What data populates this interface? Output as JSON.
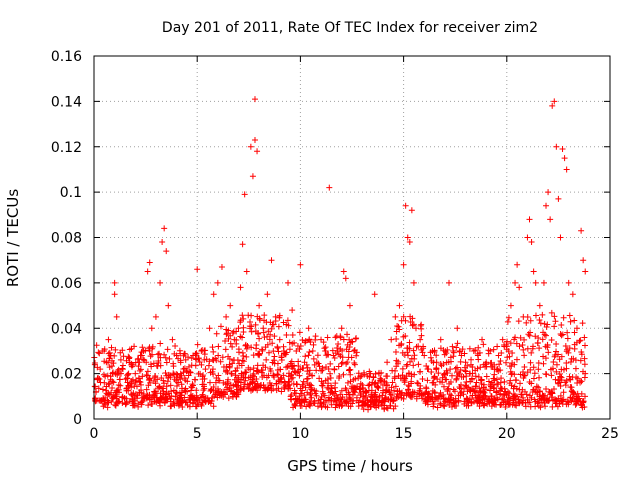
{
  "chart_data": {
    "type": "scatter",
    "title": "Day 201 of 2011, Rate Of TEC Index for receiver zim2",
    "xlabel": "GPS time / hours",
    "ylabel": "ROTI / TECUs",
    "xlim": [
      0,
      25
    ],
    "ylim": [
      0,
      0.16
    ],
    "xticks": [
      "0",
      "5",
      "10",
      "15",
      "20",
      "25"
    ],
    "yticks": [
      "0",
      "0.02",
      "0.04",
      "0.06",
      "0.08",
      "0.1",
      "0.12",
      "0.14",
      "0.16"
    ],
    "xtick_values": [
      0,
      5,
      10,
      15,
      20,
      25
    ],
    "ytick_values": [
      0,
      0.02,
      0.04,
      0.06,
      0.08,
      0.1,
      0.12,
      0.14,
      0.16
    ],
    "grid": true,
    "marker": "+",
    "series_color": "#ff0000",
    "series": [
      {
        "points": [
          [
            0.1,
            0.012
          ],
          [
            0.2,
            0.018
          ],
          [
            0.3,
            0.022
          ],
          [
            0.4,
            0.03
          ],
          [
            0.5,
            0.016
          ],
          [
            0.6,
            0.025
          ],
          [
            0.7,
            0.035
          ],
          [
            0.8,
            0.028
          ],
          [
            0.9,
            0.02
          ],
          [
            1.0,
            0.055
          ],
          [
            1.0,
            0.06
          ],
          [
            1.1,
            0.045
          ],
          [
            1.2,
            0.015
          ],
          [
            1.4,
            0.022
          ],
          [
            1.6,
            0.018
          ],
          [
            1.8,
            0.014
          ],
          [
            2.0,
            0.02
          ],
          [
            2.2,
            0.025
          ],
          [
            2.4,
            0.03
          ],
          [
            2.6,
            0.065
          ],
          [
            2.7,
            0.069
          ],
          [
            2.8,
            0.04
          ],
          [
            3.0,
            0.045
          ],
          [
            3.2,
            0.06
          ],
          [
            3.3,
            0.078
          ],
          [
            3.4,
            0.084
          ],
          [
            3.5,
            0.074
          ],
          [
            3.6,
            0.05
          ],
          [
            3.8,
            0.035
          ],
          [
            4.0,
            0.028
          ],
          [
            4.2,
            0.02
          ],
          [
            4.4,
            0.018
          ],
          [
            4.6,
            0.023
          ],
          [
            4.8,
            0.028
          ],
          [
            5.0,
            0.066
          ],
          [
            5.2,
            0.03
          ],
          [
            5.4,
            0.022
          ],
          [
            5.6,
            0.04
          ],
          [
            5.8,
            0.055
          ],
          [
            6.0,
            0.06
          ],
          [
            6.2,
            0.067
          ],
          [
            6.4,
            0.045
          ],
          [
            6.6,
            0.05
          ],
          [
            6.8,
            0.035
          ],
          [
            7.0,
            0.04
          ],
          [
            7.1,
            0.058
          ],
          [
            7.2,
            0.077
          ],
          [
            7.3,
            0.099
          ],
          [
            7.4,
            0.065
          ],
          [
            7.6,
            0.12
          ],
          [
            7.7,
            0.107
          ],
          [
            7.8,
            0.141
          ],
          [
            7.8,
            0.123
          ],
          [
            7.9,
            0.118
          ],
          [
            8.0,
            0.05
          ],
          [
            8.2,
            0.04
          ],
          [
            8.4,
            0.055
          ],
          [
            8.6,
            0.07
          ],
          [
            8.8,
            0.045
          ],
          [
            9.0,
            0.035
          ],
          [
            9.2,
            0.03
          ],
          [
            9.4,
            0.06
          ],
          [
            9.6,
            0.048
          ],
          [
            9.8,
            0.03
          ],
          [
            10.0,
            0.068
          ],
          [
            10.2,
            0.025
          ],
          [
            10.4,
            0.04
          ],
          [
            10.6,
            0.03
          ],
          [
            10.8,
            0.025
          ],
          [
            11.0,
            0.035
          ],
          [
            11.2,
            0.03
          ],
          [
            11.4,
            0.102
          ],
          [
            11.6,
            0.028
          ],
          [
            11.8,
            0.03
          ],
          [
            12.0,
            0.04
          ],
          [
            12.1,
            0.065
          ],
          [
            12.2,
            0.062
          ],
          [
            12.4,
            0.05
          ],
          [
            12.6,
            0.03
          ],
          [
            12.8,
            0.018
          ],
          [
            13.0,
            0.015
          ],
          [
            13.2,
            0.012
          ],
          [
            13.4,
            0.02
          ],
          [
            13.6,
            0.055
          ],
          [
            13.8,
            0.02
          ],
          [
            14.0,
            0.015
          ],
          [
            14.2,
            0.025
          ],
          [
            14.4,
            0.035
          ],
          [
            14.6,
            0.045
          ],
          [
            14.8,
            0.05
          ],
          [
            15.0,
            0.068
          ],
          [
            15.1,
            0.094
          ],
          [
            15.2,
            0.08
          ],
          [
            15.3,
            0.078
          ],
          [
            15.4,
            0.092
          ],
          [
            15.5,
            0.06
          ],
          [
            15.6,
            0.04
          ],
          [
            15.8,
            0.035
          ],
          [
            16.0,
            0.028
          ],
          [
            16.2,
            0.022
          ],
          [
            16.4,
            0.03
          ],
          [
            16.6,
            0.025
          ],
          [
            16.8,
            0.035
          ],
          [
            17.0,
            0.02
          ],
          [
            17.2,
            0.06
          ],
          [
            17.4,
            0.03
          ],
          [
            17.6,
            0.04
          ],
          [
            17.8,
            0.028
          ],
          [
            18.0,
            0.025
          ],
          [
            18.2,
            0.02
          ],
          [
            18.4,
            0.03
          ],
          [
            18.6,
            0.028
          ],
          [
            18.8,
            0.035
          ],
          [
            19.0,
            0.025
          ],
          [
            19.2,
            0.03
          ],
          [
            19.4,
            0.022
          ],
          [
            19.6,
            0.028
          ],
          [
            19.8,
            0.035
          ],
          [
            20.0,
            0.032
          ],
          [
            20.2,
            0.05
          ],
          [
            20.4,
            0.06
          ],
          [
            20.5,
            0.068
          ],
          [
            20.6,
            0.058
          ],
          [
            20.8,
            0.045
          ],
          [
            21.0,
            0.08
          ],
          [
            21.1,
            0.088
          ],
          [
            21.2,
            0.078
          ],
          [
            21.3,
            0.065
          ],
          [
            21.4,
            0.06
          ],
          [
            21.6,
            0.05
          ],
          [
            21.8,
            0.06
          ],
          [
            21.9,
            0.094
          ],
          [
            22.0,
            0.1
          ],
          [
            22.1,
            0.088
          ],
          [
            22.2,
            0.138
          ],
          [
            22.3,
            0.14
          ],
          [
            22.4,
            0.12
          ],
          [
            22.5,
            0.097
          ],
          [
            22.6,
            0.08
          ],
          [
            22.7,
            0.119
          ],
          [
            22.8,
            0.115
          ],
          [
            22.9,
            0.11
          ],
          [
            23.0,
            0.06
          ],
          [
            23.2,
            0.055
          ],
          [
            23.4,
            0.04
          ],
          [
            23.6,
            0.083
          ],
          [
            23.7,
            0.07
          ],
          [
            23.8,
            0.065
          ],
          [
            23.8,
            0.02
          ]
        ]
      }
    ],
    "baseline_bands": [
      {
        "x_from": 0.0,
        "x_to": 5.8,
        "y_low": 0.005,
        "y_high": 0.03
      },
      {
        "x_from": 5.8,
        "x_to": 7.0,
        "y_low": 0.008,
        "y_high": 0.04
      },
      {
        "x_from": 7.0,
        "x_to": 9.5,
        "y_low": 0.012,
        "y_high": 0.045
      },
      {
        "x_from": 9.5,
        "x_to": 12.8,
        "y_low": 0.005,
        "y_high": 0.035
      },
      {
        "x_from": 12.8,
        "x_to": 14.6,
        "y_low": 0.004,
        "y_high": 0.018
      },
      {
        "x_from": 14.6,
        "x_to": 16.0,
        "y_low": 0.008,
        "y_high": 0.045
      },
      {
        "x_from": 16.0,
        "x_to": 20.0,
        "y_low": 0.005,
        "y_high": 0.03
      },
      {
        "x_from": 20.0,
        "x_to": 23.8,
        "y_low": 0.005,
        "y_high": 0.045
      }
    ]
  }
}
